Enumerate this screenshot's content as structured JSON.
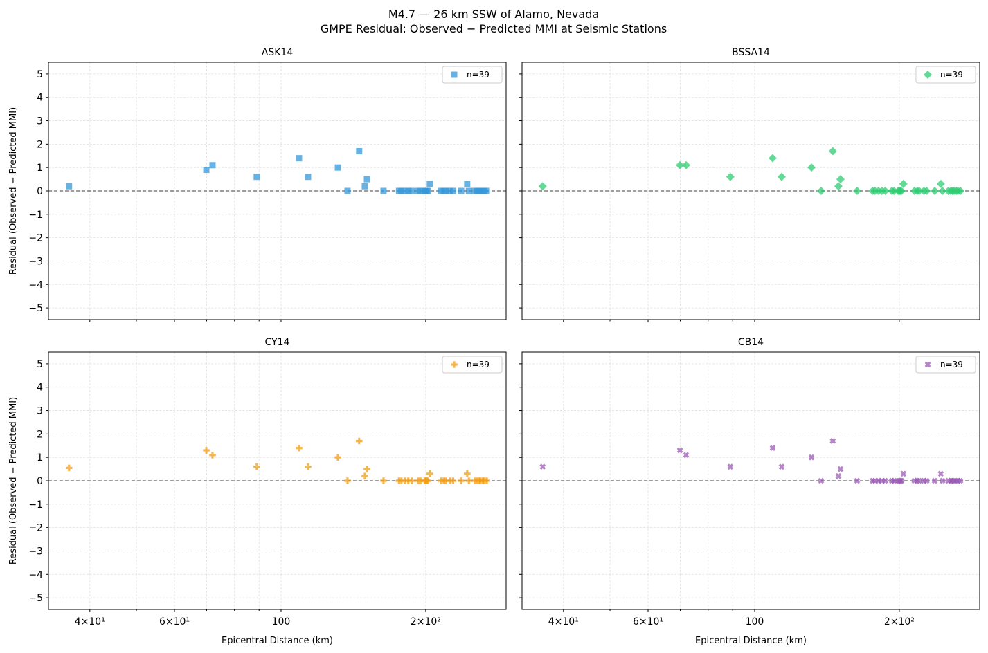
{
  "chart_data": {
    "title": "M4.7 — 26 km SSW of Alamo, Nevada",
    "subtitle": "GMPE Residual: Observed − Predicted MMI at Seismic Stations",
    "type": "scatter",
    "xlabel": "Epicentral Distance (km)",
    "ylabel": "Residual (Observed − Predicted MMI)",
    "xscale": "log",
    "xlim": [
      32.8,
      294
    ],
    "ylim": [
      -5.5,
      5.5
    ],
    "xticks": [
      40,
      60,
      100,
      200
    ],
    "xtick_labels": [
      "4×10¹",
      "6×10¹",
      "100",
      "2×10²"
    ],
    "yticks": [
      5,
      4,
      3,
      2,
      1,
      0,
      -1,
      -2,
      -3,
      -4,
      -5
    ],
    "ytick_labels": [
      "5",
      "4",
      "3",
      "2",
      "1",
      "0",
      "−1",
      "−2",
      "−3",
      "−4",
      "−5"
    ],
    "grid": true,
    "reference_line": 0,
    "legend_placement": "top-right",
    "x": [
      36.2,
      69.9,
      72.0,
      89.0,
      109,
      113.8,
      131.3,
      137.5,
      145.4,
      149.4,
      150.9,
      163.4,
      176,
      178,
      181,
      184,
      187,
      193,
      195,
      199,
      200,
      201,
      202,
      204,
      215,
      218,
      220,
      225,
      228,
      237,
      244,
      246,
      253,
      256,
      258,
      260,
      263,
      265,
      268
    ],
    "panels": [
      {
        "title": "ASK14",
        "legend": "n=39",
        "color": "#3498db",
        "marker": "square",
        "y": [
          0.2,
          0.9,
          1.1,
          0.6,
          1.4,
          0.6,
          1.0,
          0,
          1.7,
          0.2,
          0.5,
          0,
          0,
          0,
          0,
          0,
          0,
          0,
          0,
          0,
          0,
          0,
          0,
          0.3,
          0,
          0,
          0,
          0,
          0,
          0,
          0.3,
          0,
          0,
          0,
          0,
          0,
          0,
          0,
          0
        ]
      },
      {
        "title": "BSSA14",
        "legend": "n=39",
        "color": "#2ecc71",
        "marker": "diamond",
        "y": [
          0.2,
          1.1,
          1.1,
          0.6,
          1.4,
          0.6,
          1.0,
          0,
          1.7,
          0.2,
          0.5,
          0,
          0,
          0,
          0,
          0,
          0,
          0,
          0,
          0,
          0,
          0,
          0,
          0.3,
          0,
          0,
          0,
          0,
          0,
          0,
          0.3,
          0,
          0,
          0,
          0,
          0,
          0,
          0,
          0
        ]
      },
      {
        "title": "CY14",
        "legend": "n=39",
        "color": "#f39c12",
        "marker": "plus",
        "y": [
          0.55,
          1.3,
          1.1,
          0.6,
          1.4,
          0.6,
          1.0,
          0,
          1.7,
          0.2,
          0.5,
          0,
          0,
          0,
          0,
          0,
          0,
          0,
          0,
          0,
          0,
          0,
          0,
          0.3,
          0,
          0,
          0,
          0,
          0,
          0,
          0.3,
          0,
          0,
          0,
          0,
          0,
          0,
          0,
          0
        ]
      },
      {
        "title": "CB14",
        "legend": "n=39",
        "color": "#9b59b6",
        "marker": "x",
        "y": [
          0.6,
          1.3,
          1.1,
          0.6,
          1.4,
          0.6,
          1.0,
          0,
          1.7,
          0.2,
          0.5,
          0,
          0,
          0,
          0,
          0,
          0,
          0,
          0,
          0,
          0,
          0,
          0,
          0.3,
          0,
          0,
          0,
          0,
          0,
          0,
          0.3,
          0,
          0,
          0,
          0,
          0,
          0,
          0,
          0
        ]
      }
    ]
  }
}
